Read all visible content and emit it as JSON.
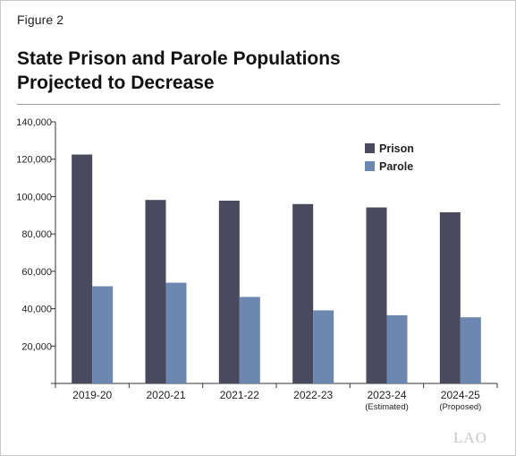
{
  "figure_label": "Figure 2",
  "title_lines": [
    "State Prison and Parole Populations",
    "Projected to Decrease"
  ],
  "logo_text": "LAO",
  "chart_data": {
    "type": "bar",
    "categories": [
      "2019-20",
      "2020-21",
      "2021-22",
      "2022-23",
      "2023-24",
      "2024-25"
    ],
    "category_sublabels": [
      "",
      "",
      "",
      "",
      "(Estimated)",
      "(Proposed)"
    ],
    "series": [
      {
        "name": "Prison",
        "color": "#4a4a5e",
        "values": [
          122500,
          98200,
          97800,
          96000,
          94200,
          91600
        ]
      },
      {
        "name": "Parole",
        "color": "#6d88b0",
        "values": [
          52000,
          53900,
          46300,
          39100,
          36500,
          35400
        ]
      }
    ],
    "ylim": [
      0,
      140000
    ],
    "yticks": [
      0,
      20000,
      40000,
      60000,
      80000,
      100000,
      120000,
      140000
    ],
    "ytick_labels": [
      "",
      "20,000",
      "40,000",
      "60,000",
      "80,000",
      "100,000",
      "120,000",
      "140,000"
    ],
    "legend_position": "top-right",
    "grid": false
  }
}
